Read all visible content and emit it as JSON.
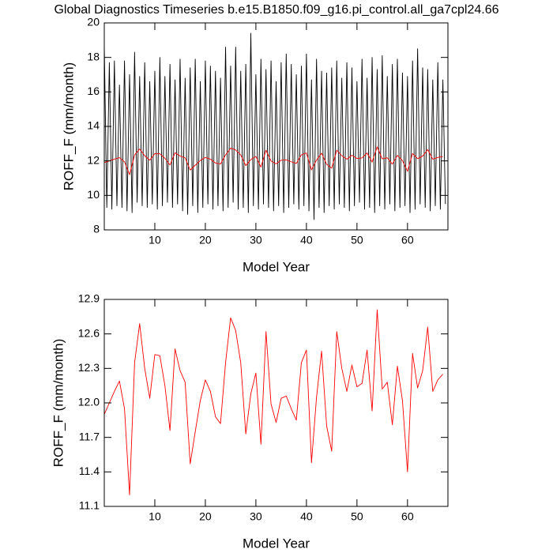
{
  "chart_data": [
    {
      "type": "line",
      "title": "Global Diagnostics Timeseries b.e15.B1850.f09_g16.pi_control.all_ga7cpl24.66",
      "xlabel": "Model Year",
      "ylabel": "ROFF_F (mm/month)",
      "xlim": [
        0,
        68
      ],
      "xticks": [
        10,
        20,
        30,
        40,
        50,
        60
      ],
      "ylim": [
        8,
        20
      ],
      "yticks": [
        8,
        10,
        12,
        14,
        16,
        18,
        20
      ],
      "series": [
        {
          "color": "#000000",
          "x": [
            0,
            0.5,
            1,
            1.5,
            2,
            2.5,
            3,
            3.5,
            4,
            4.5,
            5,
            5.5,
            6,
            6.5,
            7,
            7.5,
            8,
            8.5,
            9,
            9.5,
            10,
            10.5,
            11,
            11.5,
            12,
            12.5,
            13,
            13.5,
            14,
            14.5,
            15,
            15.5,
            16,
            16.5,
            17,
            17.5,
            18,
            18.5,
            19,
            19.5,
            20,
            20.5,
            21,
            21.5,
            22,
            22.5,
            23,
            23.5,
            24,
            24.5,
            25,
            25.5,
            26,
            26.5,
            27,
            27.5,
            28,
            28.5,
            29,
            29.5,
            30,
            30.5,
            31,
            31.5,
            32,
            32.5,
            33,
            33.5,
            34,
            34.5,
            35,
            35.5,
            36,
            36.5,
            37,
            37.5,
            38,
            38.5,
            39,
            39.5,
            40,
            40.5,
            41,
            41.5,
            42,
            42.5,
            43,
            43.5,
            44,
            44.5,
            45,
            45.5,
            46,
            46.5,
            47,
            47.5,
            48,
            48.5,
            49,
            49.5,
            50,
            50.5,
            51,
            51.5,
            52,
            52.5,
            53,
            53.5,
            54,
            54.5,
            55,
            55.5,
            56,
            56.5,
            57,
            57.5,
            58,
            58.5,
            59,
            59.5,
            60,
            60.5,
            61,
            61.5,
            62,
            62.5,
            63,
            63.5,
            64,
            64.5,
            65,
            65.5,
            66,
            66.5,
            67,
            67.5
          ],
          "values": [
            18.7,
            9.3,
            17.7,
            9.2,
            17.8,
            9.4,
            16.4,
            9.3,
            17.8,
            9.1,
            17.0,
            9.0,
            18.3,
            9.6,
            16.9,
            9.4,
            17.7,
            9.3,
            16.6,
            9.5,
            17.2,
            9.2,
            18.0,
            9.4,
            16.9,
            9.6,
            17.6,
            9.3,
            16.7,
            9.5,
            17.9,
            9.1,
            16.8,
            8.9,
            17.4,
            9.4,
            17.9,
            9.0,
            16.6,
            9.3,
            17.8,
            9.5,
            17.5,
            9.2,
            17.2,
            9.4,
            16.8,
            9.1,
            18.6,
            9.3,
            17.5,
            9.6,
            18.6,
            9.2,
            17.2,
            9.3,
            17.6,
            9.0,
            19.4,
            9.4,
            17.0,
            9.2,
            17.9,
            9.5,
            17.3,
            9.3,
            17.8,
            9.1,
            16.6,
            9.4,
            17.7,
            9.0,
            18.2,
            9.3,
            17.6,
            9.5,
            17.0,
            9.2,
            17.5,
            9.4,
            18.2,
            9.1,
            16.7,
            8.6,
            17.9,
            9.3,
            17.2,
            9.0,
            17.1,
            9.4,
            17.4,
            9.2,
            17.8,
            9.5,
            16.8,
            9.3,
            17.7,
            9.1,
            17.4,
            9.4,
            16.6,
            9.6,
            17.9,
            9.2,
            16.8,
            9.3,
            18.0,
            9.0,
            17.3,
            9.4,
            18.1,
            9.2,
            16.9,
            9.5,
            17.6,
            9.1,
            17.9,
            9.3,
            17.1,
            9.4,
            16.9,
            9.0,
            17.8,
            9.2,
            18.5,
            9.5,
            17.4,
            9.3,
            17.3,
            9.1,
            16.7,
            9.4,
            17.7,
            9.2,
            16.7,
            9.5
          ]
        },
        {
          "color": "#ff0000",
          "x": [
            0,
            1,
            2,
            3,
            4,
            5,
            6,
            7,
            8,
            9,
            10,
            11,
            12,
            13,
            14,
            15,
            16,
            17,
            18,
            19,
            20,
            21,
            22,
            23,
            24,
            25,
            26,
            27,
            28,
            29,
            30,
            31,
            32,
            33,
            34,
            35,
            36,
            37,
            38,
            39,
            40,
            41,
            42,
            43,
            44,
            45,
            46,
            47,
            48,
            49,
            50,
            51,
            52,
            53,
            54,
            55,
            56,
            57,
            58,
            59,
            60,
            61,
            62,
            63,
            64,
            65,
            66,
            67
          ],
          "values": [
            11.9,
            12.0,
            12.1,
            12.19,
            11.95,
            11.2,
            12.35,
            12.69,
            12.3,
            12.04,
            12.42,
            12.41,
            12.15,
            11.76,
            12.47,
            12.28,
            12.18,
            11.47,
            11.75,
            12.02,
            12.2,
            12.1,
            11.88,
            11.82,
            12.35,
            12.74,
            12.63,
            12.35,
            11.73,
            12.08,
            12.26,
            11.64,
            12.62,
            11.99,
            11.83,
            12.04,
            12.06,
            11.95,
            11.85,
            12.35,
            12.46,
            11.48,
            12.05,
            12.45,
            11.8,
            11.58,
            12.62,
            12.3,
            12.1,
            12.33,
            12.14,
            12.17,
            12.46,
            11.93,
            12.81,
            12.12,
            12.18,
            11.81,
            12.32,
            12.02,
            11.4,
            12.43,
            12.13,
            12.28,
            12.66,
            12.1,
            12.2,
            12.25
          ]
        }
      ]
    },
    {
      "type": "line",
      "xlabel": "Model Year",
      "ylabel": "ROFF_F (mm/month)",
      "xlim": [
        0,
        68
      ],
      "xticks": [
        10,
        20,
        30,
        40,
        50,
        60
      ],
      "ylim": [
        11.1,
        12.9
      ],
      "yticks": [
        11.1,
        11.4,
        11.7,
        {
          "value": 12,
          "label": "12.0"
        },
        12.3,
        12.6,
        12.9
      ],
      "series": [
        {
          "color": "#ff0000",
          "x": [
            0,
            1,
            2,
            3,
            4,
            5,
            6,
            7,
            8,
            9,
            10,
            11,
            12,
            13,
            14,
            15,
            16,
            17,
            18,
            19,
            20,
            21,
            22,
            23,
            24,
            25,
            26,
            27,
            28,
            29,
            30,
            31,
            32,
            33,
            34,
            35,
            36,
            37,
            38,
            39,
            40,
            41,
            42,
            43,
            44,
            45,
            46,
            47,
            48,
            49,
            50,
            51,
            52,
            53,
            54,
            55,
            56,
            57,
            58,
            59,
            60,
            61,
            62,
            63,
            64,
            65,
            66,
            67
          ],
          "values": [
            11.9,
            12.0,
            12.1,
            12.19,
            11.95,
            11.2,
            12.35,
            12.69,
            12.3,
            12.04,
            12.42,
            12.41,
            12.15,
            11.76,
            12.47,
            12.28,
            12.18,
            11.47,
            11.75,
            12.02,
            12.2,
            12.1,
            11.88,
            11.82,
            12.35,
            12.74,
            12.63,
            12.35,
            11.73,
            12.08,
            12.26,
            11.64,
            12.62,
            11.99,
            11.83,
            12.04,
            12.06,
            11.95,
            11.85,
            12.35,
            12.46,
            11.48,
            12.05,
            12.45,
            11.8,
            11.58,
            12.62,
            12.3,
            12.1,
            12.33,
            12.14,
            12.17,
            12.46,
            11.93,
            12.81,
            12.12,
            12.18,
            11.81,
            12.32,
            12.02,
            11.4,
            12.43,
            12.13,
            12.28,
            12.66,
            12.1,
            12.2,
            12.25
          ]
        }
      ]
    }
  ]
}
